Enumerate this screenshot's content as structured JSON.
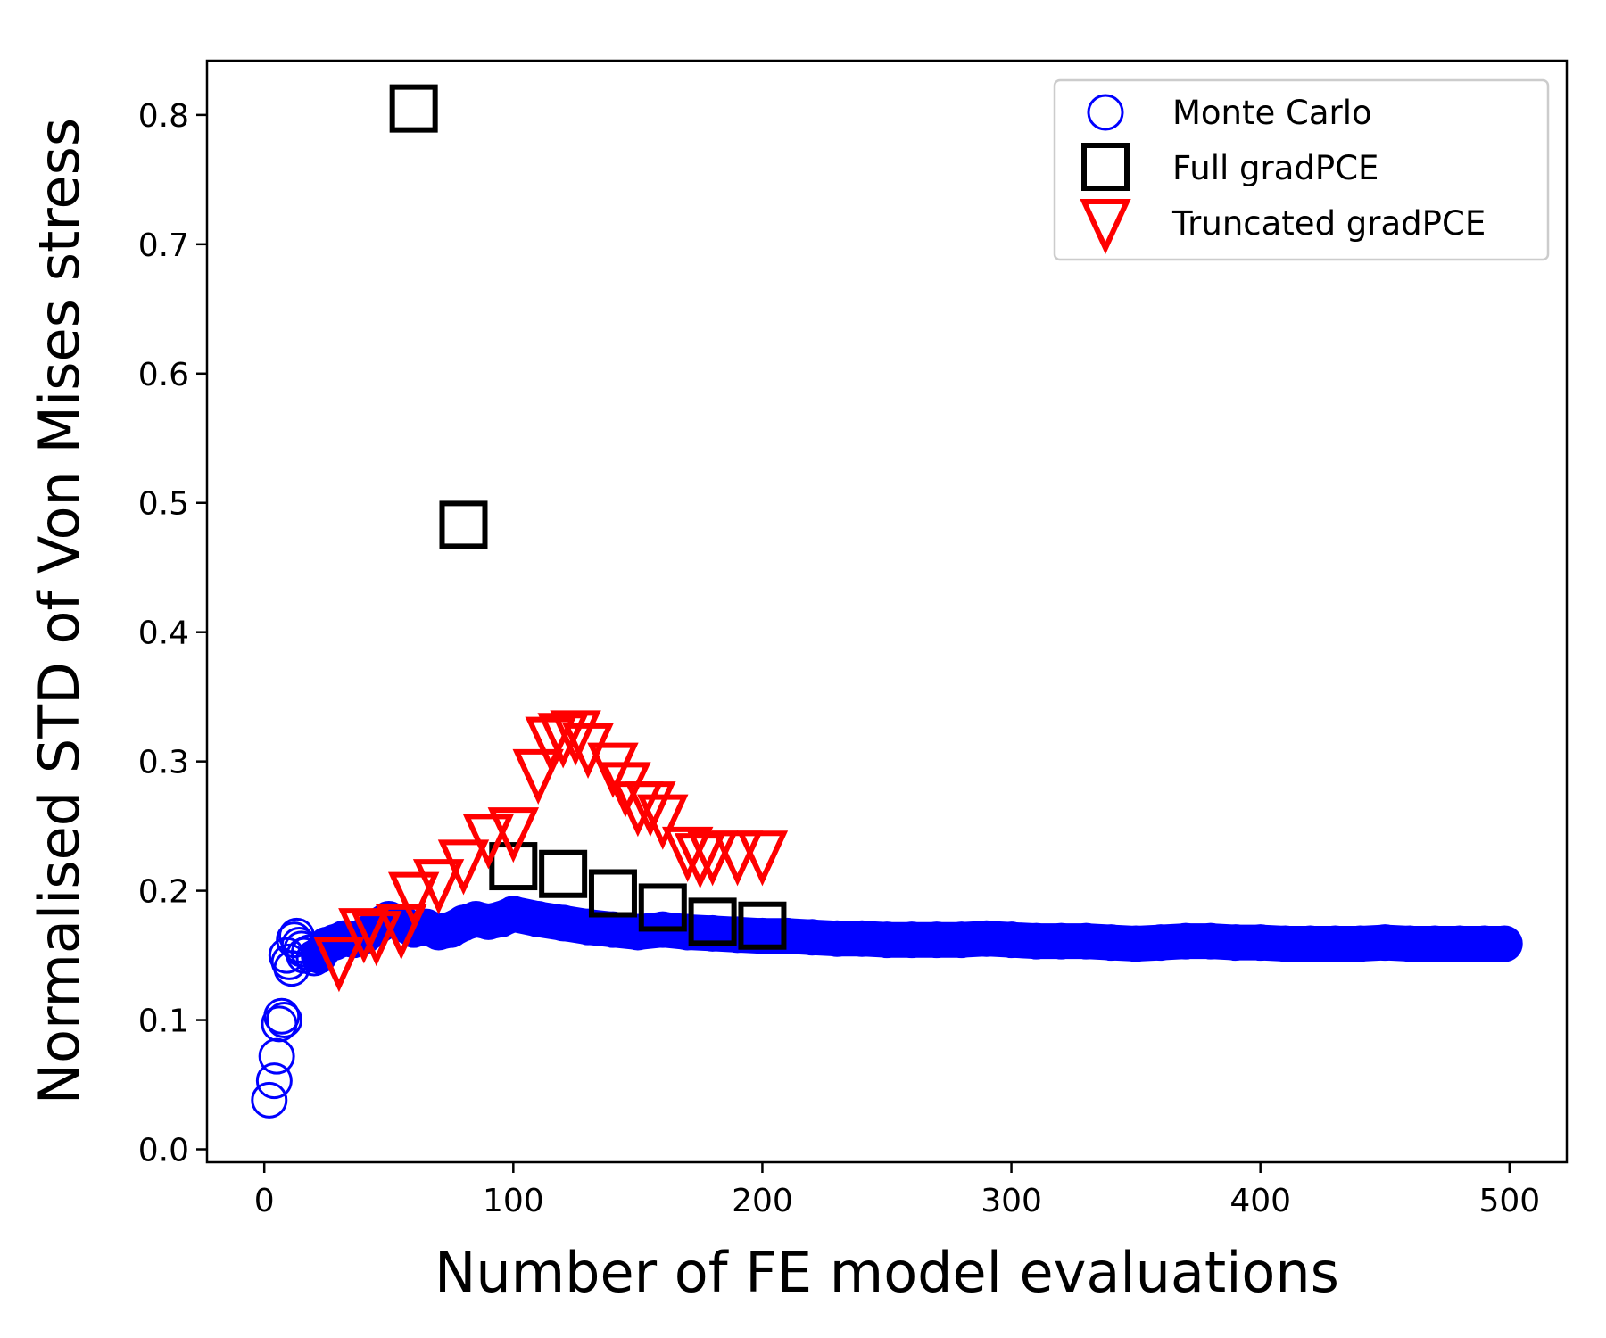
{
  "chart_data": {
    "type": "scatter",
    "title": "",
    "xlabel": "Number of FE model evaluations",
    "ylabel": "Normalised STD of Von Mises stress",
    "xlim": [
      -23,
      523
    ],
    "ylim": [
      -0.01,
      0.842
    ],
    "xticks": [
      0,
      100,
      200,
      300,
      400,
      500
    ],
    "xtick_labels": [
      "0",
      "100",
      "200",
      "300",
      "400",
      "500"
    ],
    "yticks": [
      0.0,
      0.1,
      0.2,
      0.3,
      0.4,
      0.5,
      0.6,
      0.7,
      0.8
    ],
    "ytick_labels": [
      "0.0",
      "0.1",
      "0.2",
      "0.3",
      "0.4",
      "0.5",
      "0.6",
      "0.7",
      "0.8"
    ],
    "grid": false,
    "legend_position": "top-right",
    "series": [
      {
        "name": "Monte Carlo",
        "marker": "circle",
        "color": "#0000ff",
        "x": [
          2,
          4,
          5,
          6,
          7,
          8,
          9,
          10,
          11,
          12,
          13,
          14,
          15,
          16,
          18,
          20,
          22,
          25,
          28,
          32,
          36,
          40,
          45,
          50,
          55,
          60,
          65,
          70,
          75,
          80,
          85,
          90,
          95,
          100,
          110,
          120,
          130,
          140,
          150,
          160,
          170,
          180,
          190,
          200,
          210,
          220,
          230,
          240,
          250,
          260,
          270,
          280,
          290,
          300,
          310,
          320,
          330,
          340,
          350,
          360,
          370,
          380,
          390,
          400,
          410,
          420,
          430,
          440,
          450,
          460,
          470,
          480,
          490,
          498
        ],
        "y": [
          0.038,
          0.053,
          0.072,
          0.097,
          0.103,
          0.1,
          0.15,
          0.145,
          0.14,
          0.162,
          0.165,
          0.158,
          0.155,
          0.15,
          0.152,
          0.148,
          0.15,
          0.158,
          0.16,
          0.163,
          0.162,
          0.165,
          0.172,
          0.178,
          0.175,
          0.17,
          0.172,
          0.168,
          0.17,
          0.175,
          0.178,
          0.176,
          0.178,
          0.182,
          0.178,
          0.175,
          0.172,
          0.17,
          0.168,
          0.17,
          0.168,
          0.167,
          0.166,
          0.165,
          0.165,
          0.164,
          0.163,
          0.163,
          0.162,
          0.162,
          0.162,
          0.162,
          0.163,
          0.162,
          0.161,
          0.161,
          0.161,
          0.16,
          0.159,
          0.16,
          0.161,
          0.161,
          0.16,
          0.16,
          0.159,
          0.159,
          0.159,
          0.159,
          0.16,
          0.159,
          0.159,
          0.159,
          0.159,
          0.159
        ]
      },
      {
        "name": "Full gradPCE",
        "marker": "square",
        "color": "#000000",
        "x": [
          60,
          80,
          100,
          120,
          140,
          160,
          180,
          200
        ],
        "y": [
          0.805,
          0.483,
          0.219,
          0.213,
          0.198,
          0.187,
          0.176,
          0.173
        ]
      },
      {
        "name": "Truncated gradPCE",
        "marker": "triangle-down",
        "color": "#ff0000",
        "x": [
          30,
          40,
          45,
          55,
          60,
          70,
          80,
          90,
          100,
          110,
          115,
          120,
          125,
          130,
          140,
          145,
          150,
          155,
          160,
          170,
          175,
          180,
          190,
          200
        ],
        "y": [
          0.15,
          0.172,
          0.17,
          0.175,
          0.2,
          0.21,
          0.225,
          0.245,
          0.25,
          0.295,
          0.32,
          0.323,
          0.325,
          0.315,
          0.3,
          0.285,
          0.27,
          0.27,
          0.26,
          0.235,
          0.23,
          0.232,
          0.232,
          0.232
        ]
      }
    ]
  }
}
